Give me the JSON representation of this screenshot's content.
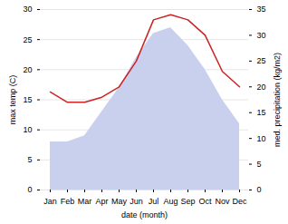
{
  "chart_data": {
    "type": "area",
    "xlabel": "date (month)",
    "ylabel": "max temp (C)",
    "y2label": "med. precipitation (kg/m2)",
    "categories": [
      "Jan",
      "Feb",
      "Mar",
      "Apr",
      "May",
      "Jun",
      "Jul",
      "Aug",
      "Sep",
      "Oct",
      "Nov",
      "Dec"
    ],
    "series": [
      {
        "type": "area",
        "color": "#c8d0ee",
        "values": [
          8.0,
          8.0,
          9.0,
          13.0,
          17.0,
          22.0,
          26.0,
          27.0,
          24.0,
          20.0,
          15.0,
          11.0
        ]
      },
      {
        "type": "line",
        "color": "#cc2222",
        "axis": "y2",
        "values": [
          19.0,
          17.0,
          17.0,
          18.0,
          20.0,
          25.0,
          33.0,
          34.0,
          33.0,
          30.0,
          23.0,
          20.0
        ]
      }
    ],
    "ylim": [
      0,
      30
    ],
    "yticks": [
      0,
      5,
      10,
      15,
      20,
      25,
      30
    ],
    "y2lim": [
      0,
      35
    ],
    "y2ticks": [
      0,
      5,
      10,
      15,
      20,
      25,
      30,
      35
    ],
    "grid": true
  }
}
